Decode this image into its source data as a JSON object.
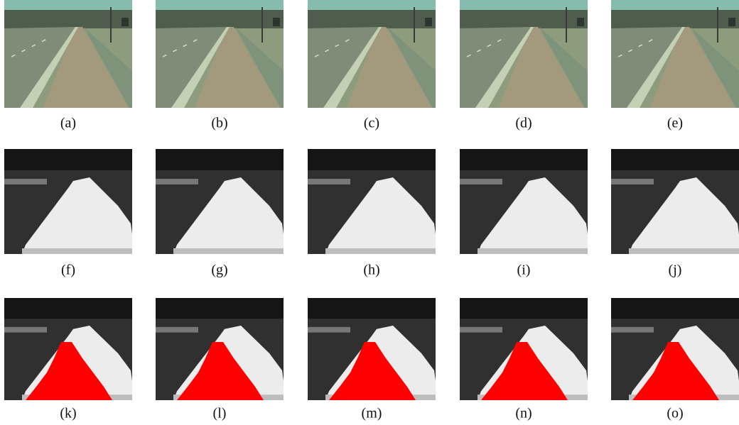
{
  "figure": {
    "panels": [
      {
        "caption": "(a)"
      },
      {
        "caption": "(b)"
      },
      {
        "caption": "(c)"
      },
      {
        "caption": "(d)"
      },
      {
        "caption": "(e)"
      },
      {
        "caption": "(f)"
      },
      {
        "caption": "(g)"
      },
      {
        "caption": "(h)"
      },
      {
        "caption": "(i)"
      },
      {
        "caption": "(j)"
      },
      {
        "caption": "(k)"
      },
      {
        "caption": "(l)"
      },
      {
        "caption": "(m)"
      },
      {
        "caption": "(n)"
      },
      {
        "caption": "(o)"
      }
    ]
  }
}
